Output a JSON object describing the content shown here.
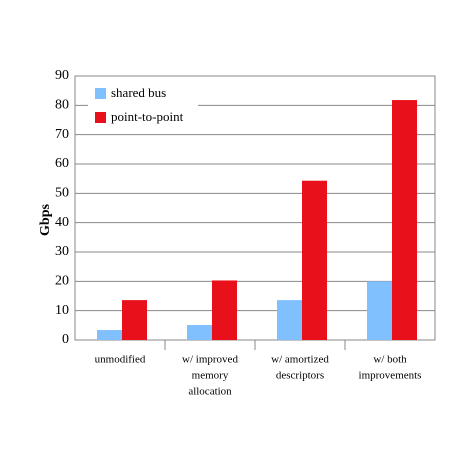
{
  "chart_data": {
    "type": "bar",
    "y_label": "Gbps",
    "categories": [
      [
        "unmodified"
      ],
      [
        "w/ improved",
        "memory",
        "allocation"
      ],
      [
        "w/ amortized",
        "descriptors"
      ],
      [
        "w/ both",
        "improvements"
      ]
    ],
    "series": [
      {
        "name": "shared bus",
        "color": "#80c0ff",
        "values": [
          3.4,
          5.1,
          13.6,
          20
        ]
      },
      {
        "name": "point-to-point",
        "color": "#e8101a",
        "values": [
          13.6,
          20.3,
          54.3,
          81.8
        ]
      }
    ],
    "ylim": [
      0,
      90
    ],
    "yticks": [
      0,
      10,
      20,
      30,
      40,
      50,
      60,
      70,
      80,
      90
    ],
    "grid": true,
    "legend": "top-left"
  }
}
